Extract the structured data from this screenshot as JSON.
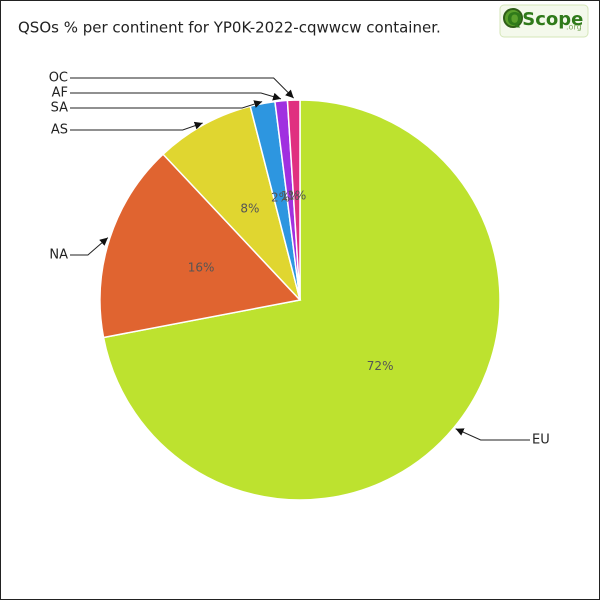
{
  "chart_data": {
    "type": "pie",
    "title": "QSOs % per continent for YP0K-2022-cqwwcw container.",
    "logo": {
      "text": "QScope",
      "suffix": ".org"
    },
    "categories": [
      "EU",
      "NA",
      "AS",
      "SA",
      "AF",
      "OC"
    ],
    "values": [
      72,
      16,
      8,
      2,
      1,
      1
    ],
    "value_labels": [
      "72%",
      "16%",
      "8%",
      "2%",
      "1%",
      "1%"
    ],
    "colors": [
      "#bde22f",
      "#e06430",
      "#e0d630",
      "#2d96e0",
      "#a030e0",
      "#e03080"
    ]
  }
}
